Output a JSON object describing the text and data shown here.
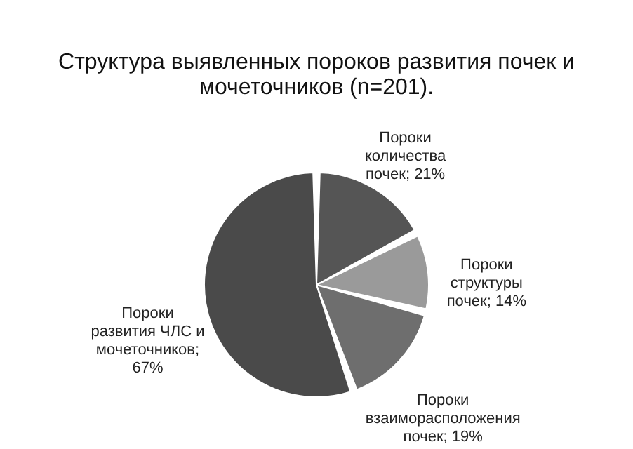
{
  "chart_data": {
    "type": "pie",
    "title": "Структура выявленных пороков развития почек и мочеточников (n=201).",
    "categories": [
      "Пороки количества почек; 21%",
      "Пороки структуры почек; 14%",
      "Пороки взаиморасположения почек; 19%",
      "Пороки развития ЧЛС и мочеточников; 67%"
    ],
    "values": [
      21,
      14,
      19,
      67
    ],
    "colors": [
      "#555555",
      "#9a9a9a",
      "#6e6e6e",
      "#4a4a4a"
    ],
    "legend": false
  }
}
